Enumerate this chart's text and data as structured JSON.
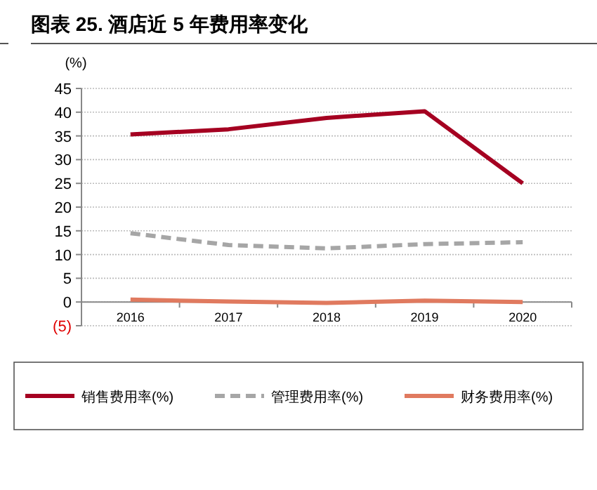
{
  "chart_data": {
    "type": "line",
    "title": "图表 25. 酒店近 5 年费用率变化",
    "ylabel": "(%)",
    "categories": [
      "2016",
      "2017",
      "2018",
      "2019",
      "2020"
    ],
    "series": [
      {
        "name": "销售费用率(%)",
        "color": "#a50021",
        "values": [
          35.3,
          36.4,
          38.8,
          40.2,
          25.0
        ]
      },
      {
        "name": "管理费用率(%)",
        "color": "#a6a6a6",
        "values": [
          14.5,
          12.0,
          11.3,
          12.2,
          12.6
        ],
        "line_style": "dashed"
      },
      {
        "name": "财务费用率(%)",
        "color": "#e07a5f",
        "values": [
          0.5,
          0.1,
          -0.2,
          0.3,
          0.0
        ]
      }
    ],
    "ylim": [
      -5,
      45
    ],
    "yticks": [
      {
        "value": -5,
        "label": "(5)"
      },
      0,
      5,
      10,
      15,
      20,
      25,
      30,
      35,
      40,
      45
    ],
    "grid": "y",
    "legend": "bottom",
    "marker": "none"
  }
}
